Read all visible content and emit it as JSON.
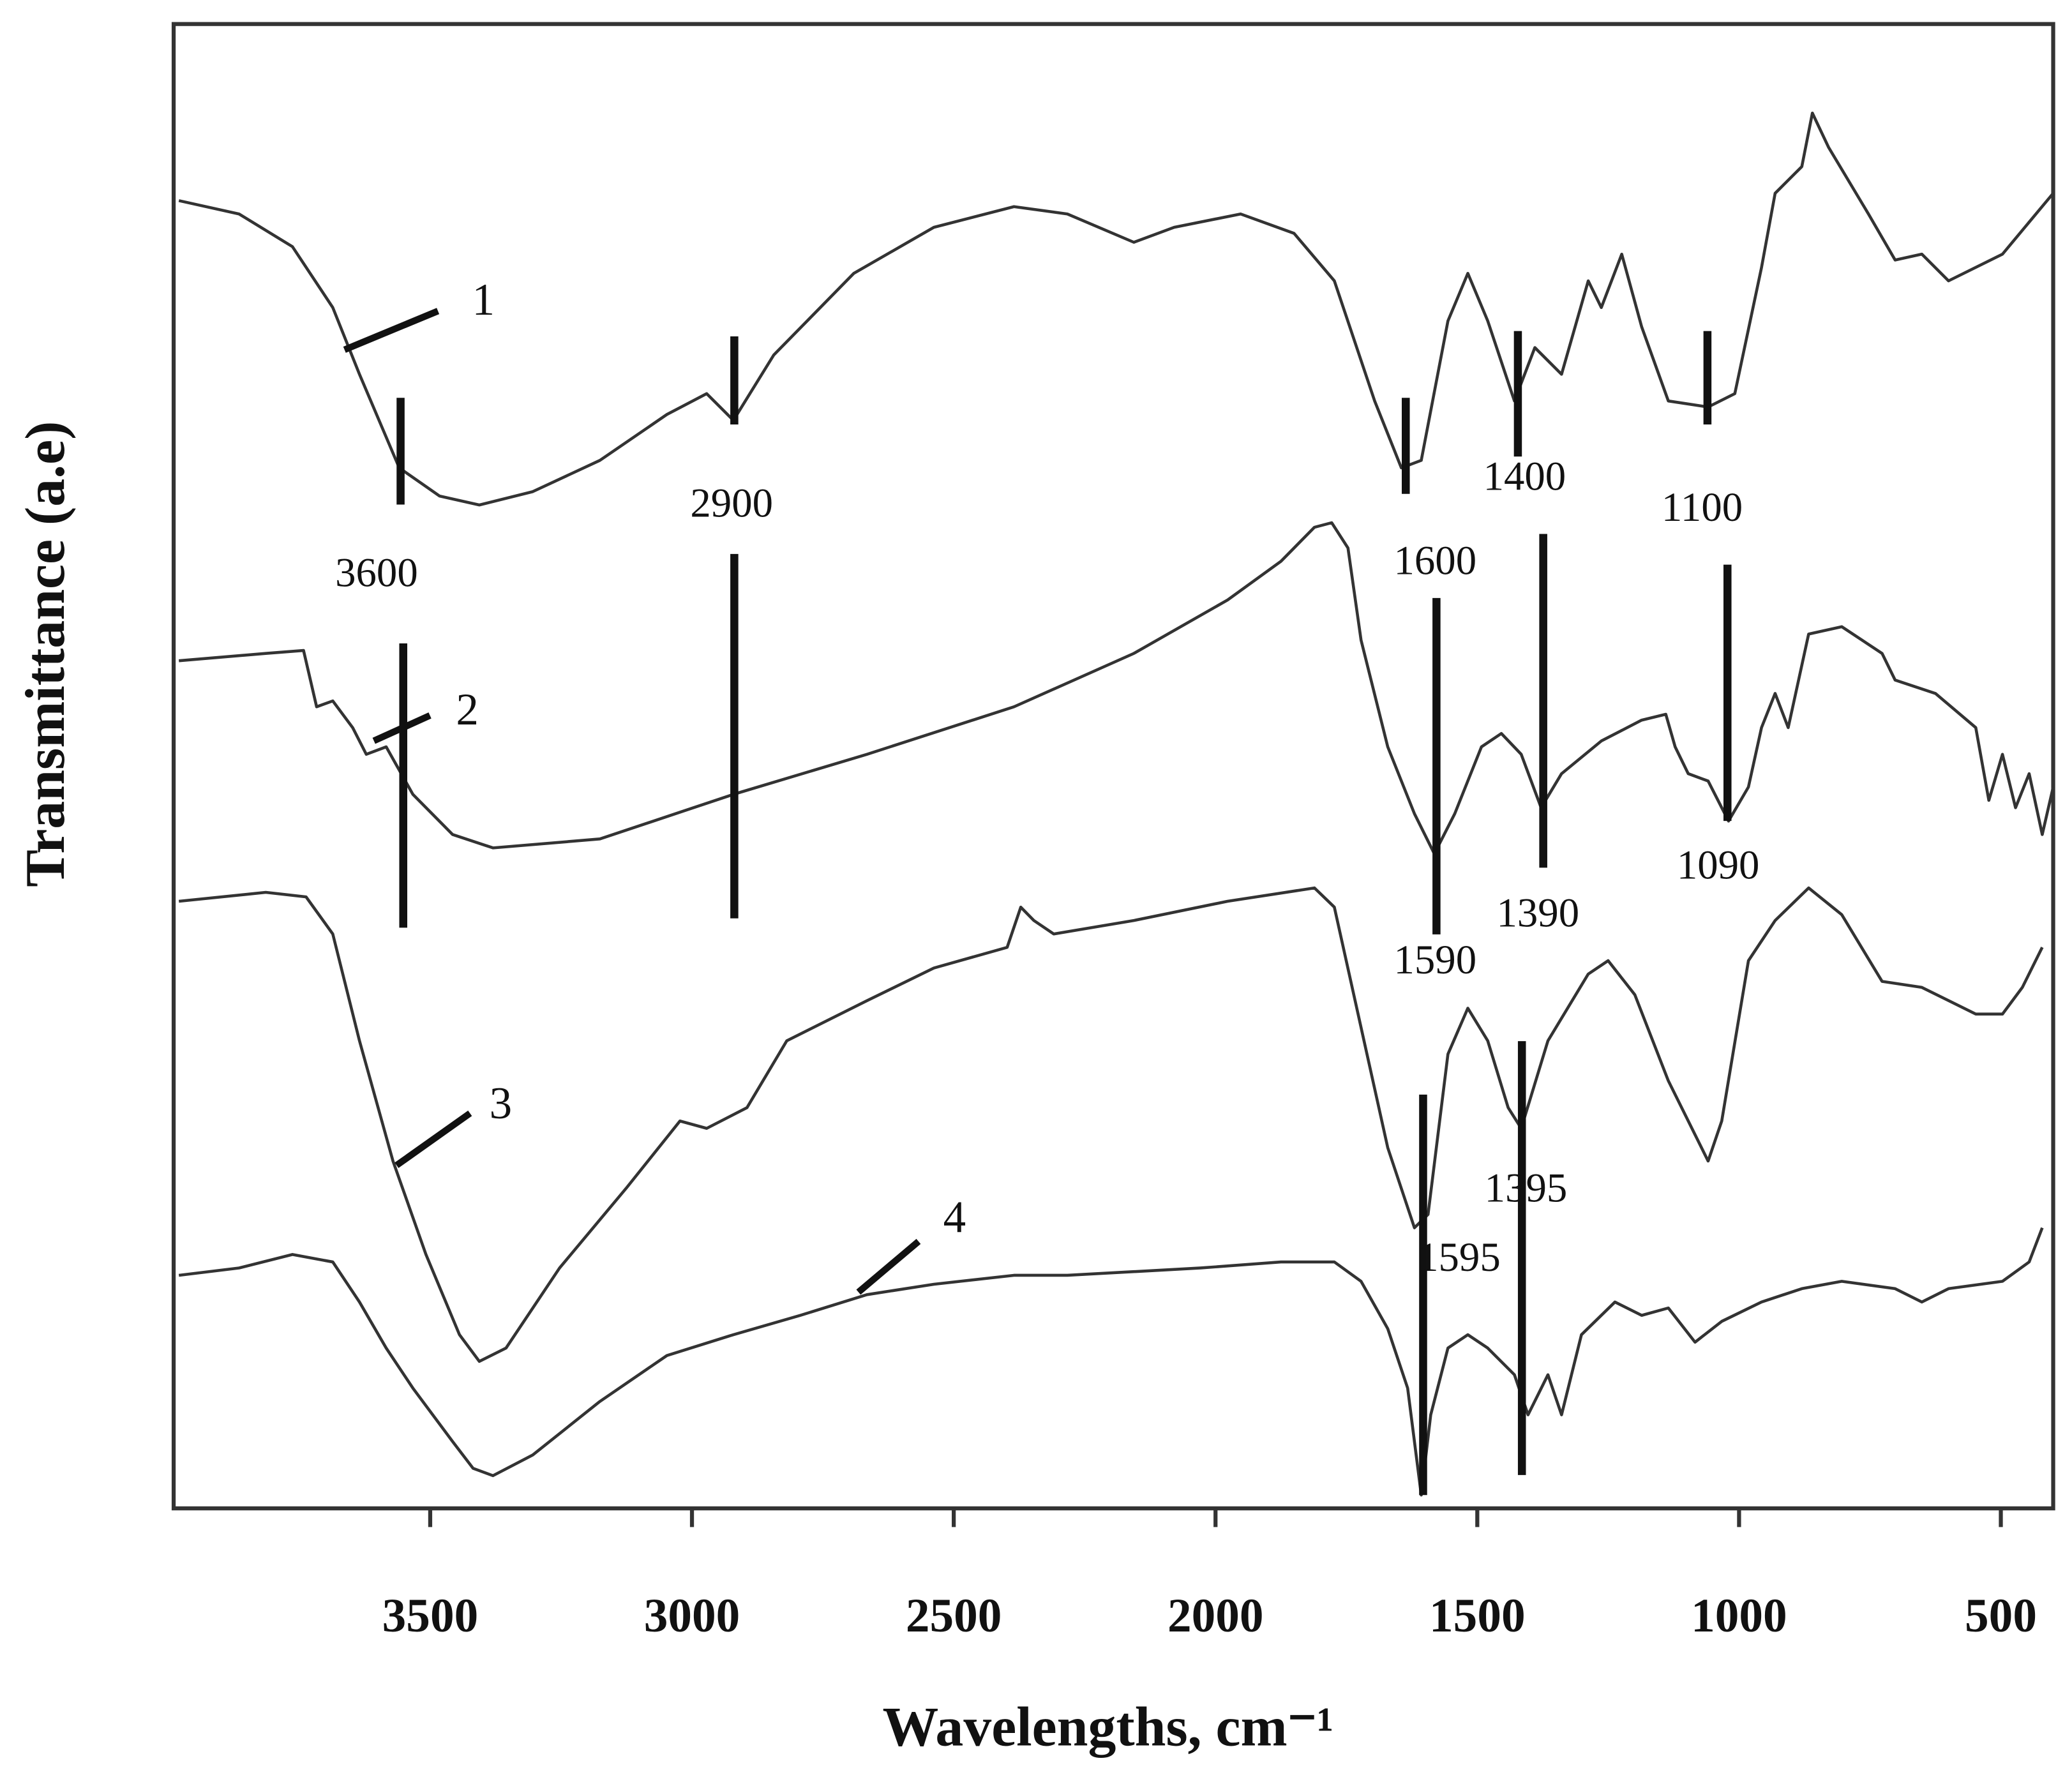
{
  "chart_data": {
    "type": "line",
    "x_label": "Wavelengths, cm⁻¹",
    "y_label": "Transmittance  (a.e)",
    "xlim": [
      3990,
      400
    ],
    "ylim": [
      0,
      100
    ],
    "xticks": [
      3500,
      3000,
      2500,
      2000,
      1500,
      1000,
      500
    ],
    "peak_labels": [
      "3600",
      "2900",
      "1600",
      "1400",
      "1100",
      "1590",
      "1390",
      "1090",
      "1395",
      "1595"
    ],
    "series": [
      {
        "name": "1",
        "color": "#333333",
        "x": [
          3980,
          3865,
          3763,
          3686,
          3635,
          3559,
          3482,
          3406,
          3304,
          3176,
          3048,
          2972,
          2921,
          2844,
          2691,
          2538,
          2385,
          2283,
          2156,
          2079,
          1952,
          1850,
          1773,
          1696,
          1645,
          1607,
          1556,
          1518,
          1480,
          1429,
          1390,
          1339,
          1288,
          1263,
          1224,
          1186,
          1135,
          1059,
          1008,
          957,
          931,
          880,
          860,
          829,
          753,
          702,
          651,
          600,
          497,
          400
        ],
        "values": [
          88.1,
          87.2,
          85.0,
          80.9,
          76.4,
          70.1,
          68.2,
          67.6,
          68.5,
          70.6,
          73.7,
          75.1,
          73.3,
          77.7,
          83.2,
          86.3,
          87.7,
          87.2,
          85.3,
          86.3,
          87.2,
          85.9,
          82.7,
          74.6,
          70.1,
          70.6,
          80.0,
          83.2,
          80.0,
          74.6,
          78.2,
          76.4,
          82.7,
          80.9,
          84.5,
          79.6,
          74.6,
          74.2,
          75.1,
          83.6,
          88.6,
          90.4,
          94.0,
          91.7,
          87.2,
          84.1,
          84.5,
          82.7,
          84.5,
          88.6
        ]
      },
      {
        "name": "2",
        "color": "#333333",
        "x": [
          3980,
          3814,
          3742,
          3717,
          3686,
          3648,
          3622,
          3584,
          3533,
          3457,
          3380,
          3176,
          2921,
          2666,
          2385,
          2156,
          1977,
          1875,
          1811,
          1778,
          1747,
          1722,
          1671,
          1620,
          1582,
          1543,
          1492,
          1454,
          1416,
          1378,
          1339,
          1263,
          1186,
          1140,
          1122,
          1097,
          1059,
          1020,
          982,
          957,
          931,
          906,
          867,
          804,
          727,
          702,
          625,
          548,
          523,
          497,
          472,
          446,
          421,
          400
        ],
        "values": [
          57.1,
          57.6,
          57.8,
          54.0,
          54.4,
          52.6,
          50.8,
          51.3,
          48.1,
          45.4,
          44.5,
          45.1,
          48.1,
          50.8,
          54.0,
          57.6,
          61.2,
          63.8,
          66.1,
          66.4,
          64.7,
          58.5,
          51.3,
          46.8,
          44.1,
          46.8,
          51.3,
          52.2,
          50.8,
          47.2,
          49.5,
          51.7,
          53.1,
          53.5,
          51.3,
          49.5,
          49.0,
          46.3,
          48.6,
          52.6,
          54.9,
          52.6,
          58.9,
          59.4,
          57.6,
          55.8,
          54.9,
          52.6,
          47.7,
          50.8,
          47.2,
          49.5,
          45.4,
          48.6
        ]
      },
      {
        "name": "3",
        "color": "#333333",
        "x": [
          3980,
          3814,
          3737,
          3686,
          3635,
          3571,
          3508,
          3444,
          3406,
          3355,
          3253,
          3125,
          3023,
          2972,
          2895,
          2819,
          2666,
          2538,
          2398,
          2372,
          2347,
          2309,
          2156,
          1977,
          1811,
          1773,
          1722,
          1671,
          1620,
          1594,
          1556,
          1518,
          1480,
          1441,
          1416,
          1365,
          1288,
          1250,
          1199,
          1135,
          1059,
          1033,
          982,
          931,
          867,
          804,
          727,
          651,
          548,
          497,
          459,
          421
        ],
        "values": [
          40.9,
          41.5,
          41.2,
          38.7,
          31.5,
          23.4,
          17.1,
          11.7,
          9.9,
          10.8,
          16.2,
          21.6,
          26.1,
          25.6,
          27.0,
          31.5,
          34.2,
          36.4,
          37.8,
          40.5,
          39.6,
          38.7,
          39.6,
          40.9,
          41.8,
          40.5,
          32.4,
          24.3,
          18.9,
          19.8,
          30.6,
          33.7,
          31.5,
          27.0,
          25.6,
          31.5,
          36.0,
          36.9,
          34.6,
          28.8,
          23.4,
          26.1,
          36.9,
          39.6,
          41.8,
          40.0,
          35.5,
          35.1,
          33.3,
          33.3,
          35.1,
          37.8
        ]
      },
      {
        "name": "4",
        "color": "#333333",
        "x": [
          3980,
          3865,
          3763,
          3686,
          3635,
          3584,
          3533,
          3457,
          3418,
          3380,
          3304,
          3176,
          3048,
          2921,
          2793,
          2666,
          2538,
          2385,
          2283,
          2028,
          1875,
          1773,
          1722,
          1671,
          1633,
          1607,
          1589,
          1556,
          1518,
          1480,
          1429,
          1403,
          1365,
          1339,
          1301,
          1237,
          1186,
          1135,
          1084,
          1033,
          957,
          880,
          804,
          702,
          651,
          600,
          497,
          446,
          421
        ],
        "values": [
          15.7,
          16.2,
          17.1,
          16.6,
          13.9,
          10.8,
          8.1,
          4.5,
          2.7,
          2.2,
          3.6,
          7.2,
          10.3,
          11.7,
          13.0,
          14.4,
          15.1,
          15.7,
          15.7,
          16.2,
          16.6,
          16.6,
          15.3,
          12.1,
          8.1,
          0.9,
          6.3,
          10.8,
          11.7,
          10.8,
          9.0,
          6.3,
          9.0,
          6.3,
          11.7,
          13.9,
          13.0,
          13.5,
          11.2,
          12.6,
          13.9,
          14.8,
          15.3,
          14.8,
          13.9,
          14.8,
          15.3,
          16.6,
          18.9
        ]
      }
    ]
  }
}
